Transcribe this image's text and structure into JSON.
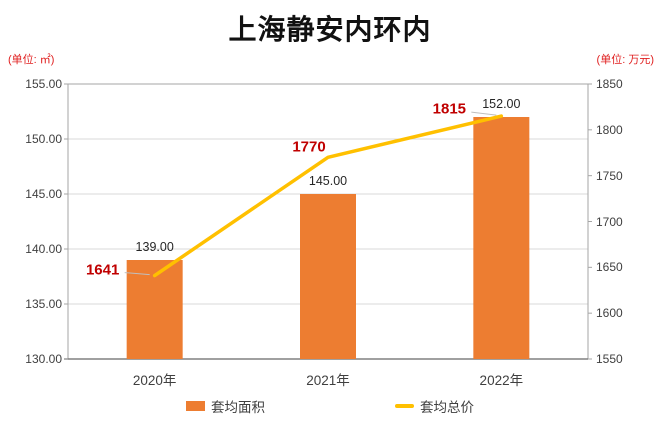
{
  "title": "上海静安内环内",
  "chart_data": {
    "type": "bar+line combo, dual axis",
    "title": "上海静安内环内",
    "categories": [
      "2020年",
      "2021年",
      "2022年"
    ],
    "series": [
      {
        "name": "套均面积",
        "type": "bar",
        "axis": "left",
        "values": [
          139.0,
          145.0,
          152.0
        ],
        "labels": [
          "139.00",
          "145.00",
          "152.00"
        ],
        "color": "#ED7D31",
        "label_color": "#262626"
      },
      {
        "name": "套均总价",
        "type": "line",
        "axis": "right",
        "values": [
          1641,
          1770,
          1815
        ],
        "labels": [
          "1641",
          "1770",
          "1815"
        ],
        "color": "#FFC000",
        "label_color": "#C00000"
      }
    ],
    "left_axis": {
      "unit": "(单位: ㎡)",
      "min": 130,
      "max": 155,
      "step": 5,
      "ticks": [
        "155.00",
        "150.00",
        "145.00",
        "140.00",
        "135.00",
        "130.00"
      ]
    },
    "right_axis": {
      "unit": "(单位: 万元)",
      "min": 1550,
      "max": 1850,
      "step": 50,
      "ticks": [
        "1850",
        "1800",
        "1750",
        "1700",
        "1650",
        "1600",
        "1550"
      ]
    },
    "grid": "horizontal gridlines at left-axis ticks",
    "legend_position": "bottom"
  },
  "colors": {
    "bar": "#ED7D31",
    "line": "#FFC000",
    "red_label": "#C00000",
    "unit_label": "#E02020",
    "grid": "#D9D9D9",
    "border": "#A6A6A6",
    "axis": "#808080",
    "leader": "#BFBFBF"
  }
}
